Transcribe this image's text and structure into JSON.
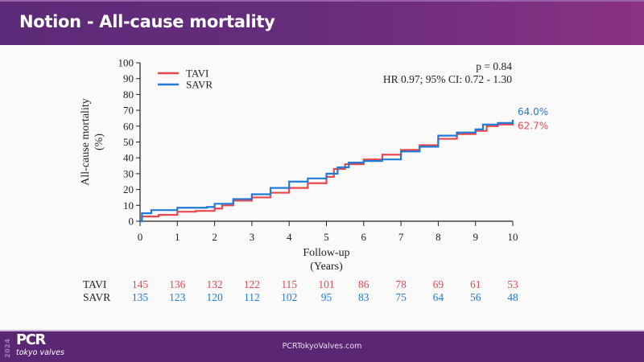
{
  "header": {
    "title": "Notion - All-cause mortality"
  },
  "footer": {
    "logo_year": "2024",
    "logo_main": "PCR",
    "logo_sub": "tokyo valves",
    "url": "PCRTokyoValves.com"
  },
  "colors": {
    "tavi": "#e8474c",
    "savr": "#1f7ad8",
    "header_start": "#5c2a78",
    "header_end": "#8a3184",
    "footer": "#5b2775"
  },
  "chart_data": {
    "type": "line",
    "step": true,
    "title": "",
    "xlabel": "Follow-up (Years)",
    "xlabel_lines": [
      "Follow-up",
      "(Years)"
    ],
    "ylabel": "All-cause mortality (%)",
    "ylabel_lines": [
      "All-cause mortality",
      "(%)"
    ],
    "xlim": [
      0,
      10
    ],
    "ylim": [
      0,
      100
    ],
    "xticks": [
      0,
      1,
      2,
      3,
      4,
      5,
      6,
      7,
      8,
      9,
      10
    ],
    "yticks": [
      0,
      10,
      20,
      30,
      40,
      50,
      60,
      70,
      80,
      90,
      100
    ],
    "grid": false,
    "legend": {
      "placement": "top-left",
      "entries": [
        "TAVI",
        "SAVR"
      ]
    },
    "annotations": {
      "p_value": "p = 0.84",
      "hazard_ratio": "HR 0.97; 95% CI: 0.72 - 1.30"
    },
    "series": [
      {
        "name": "TAVI",
        "color": "#e8474c",
        "end_label": "62.7%",
        "x": [
          0,
          0.05,
          0.5,
          1,
          1.5,
          2,
          2.2,
          2.5,
          3,
          3.5,
          4,
          4.5,
          5,
          5.2,
          5.5,
          6,
          6.5,
          7,
          7.5,
          8,
          8.5,
          9,
          9.3,
          9.6,
          10
        ],
        "y": [
          0,
          3,
          4,
          6,
          6.5,
          8,
          10,
          13,
          15,
          18,
          21,
          24,
          28,
          33,
          36,
          39,
          42,
          45,
          48,
          52,
          55,
          57,
          60,
          61,
          62.7
        ]
      },
      {
        "name": "SAVR",
        "color": "#1f7ad8",
        "end_label": "64.0%",
        "x": [
          0,
          0.05,
          0.3,
          1,
          1.8,
          2,
          2.5,
          3,
          3.5,
          4,
          4.5,
          5,
          5.3,
          5.6,
          6,
          6.5,
          7,
          7.5,
          8,
          8.5,
          9,
          9.2,
          9.6,
          10
        ],
        "y": [
          0,
          5,
          7,
          8.5,
          9,
          11,
          14,
          17,
          21,
          25,
          27,
          30,
          34,
          37,
          38,
          39,
          44,
          47,
          54,
          56,
          58,
          61,
          62,
          64
        ]
      }
    ],
    "risk_table": {
      "rows": [
        {
          "name": "TAVI",
          "values": [
            145,
            136,
            132,
            122,
            115,
            101,
            86,
            78,
            69,
            61,
            53
          ]
        },
        {
          "name": "SAVR",
          "values": [
            135,
            123,
            120,
            112,
            102,
            95,
            83,
            75,
            64,
            56,
            48
          ]
        }
      ]
    }
  }
}
